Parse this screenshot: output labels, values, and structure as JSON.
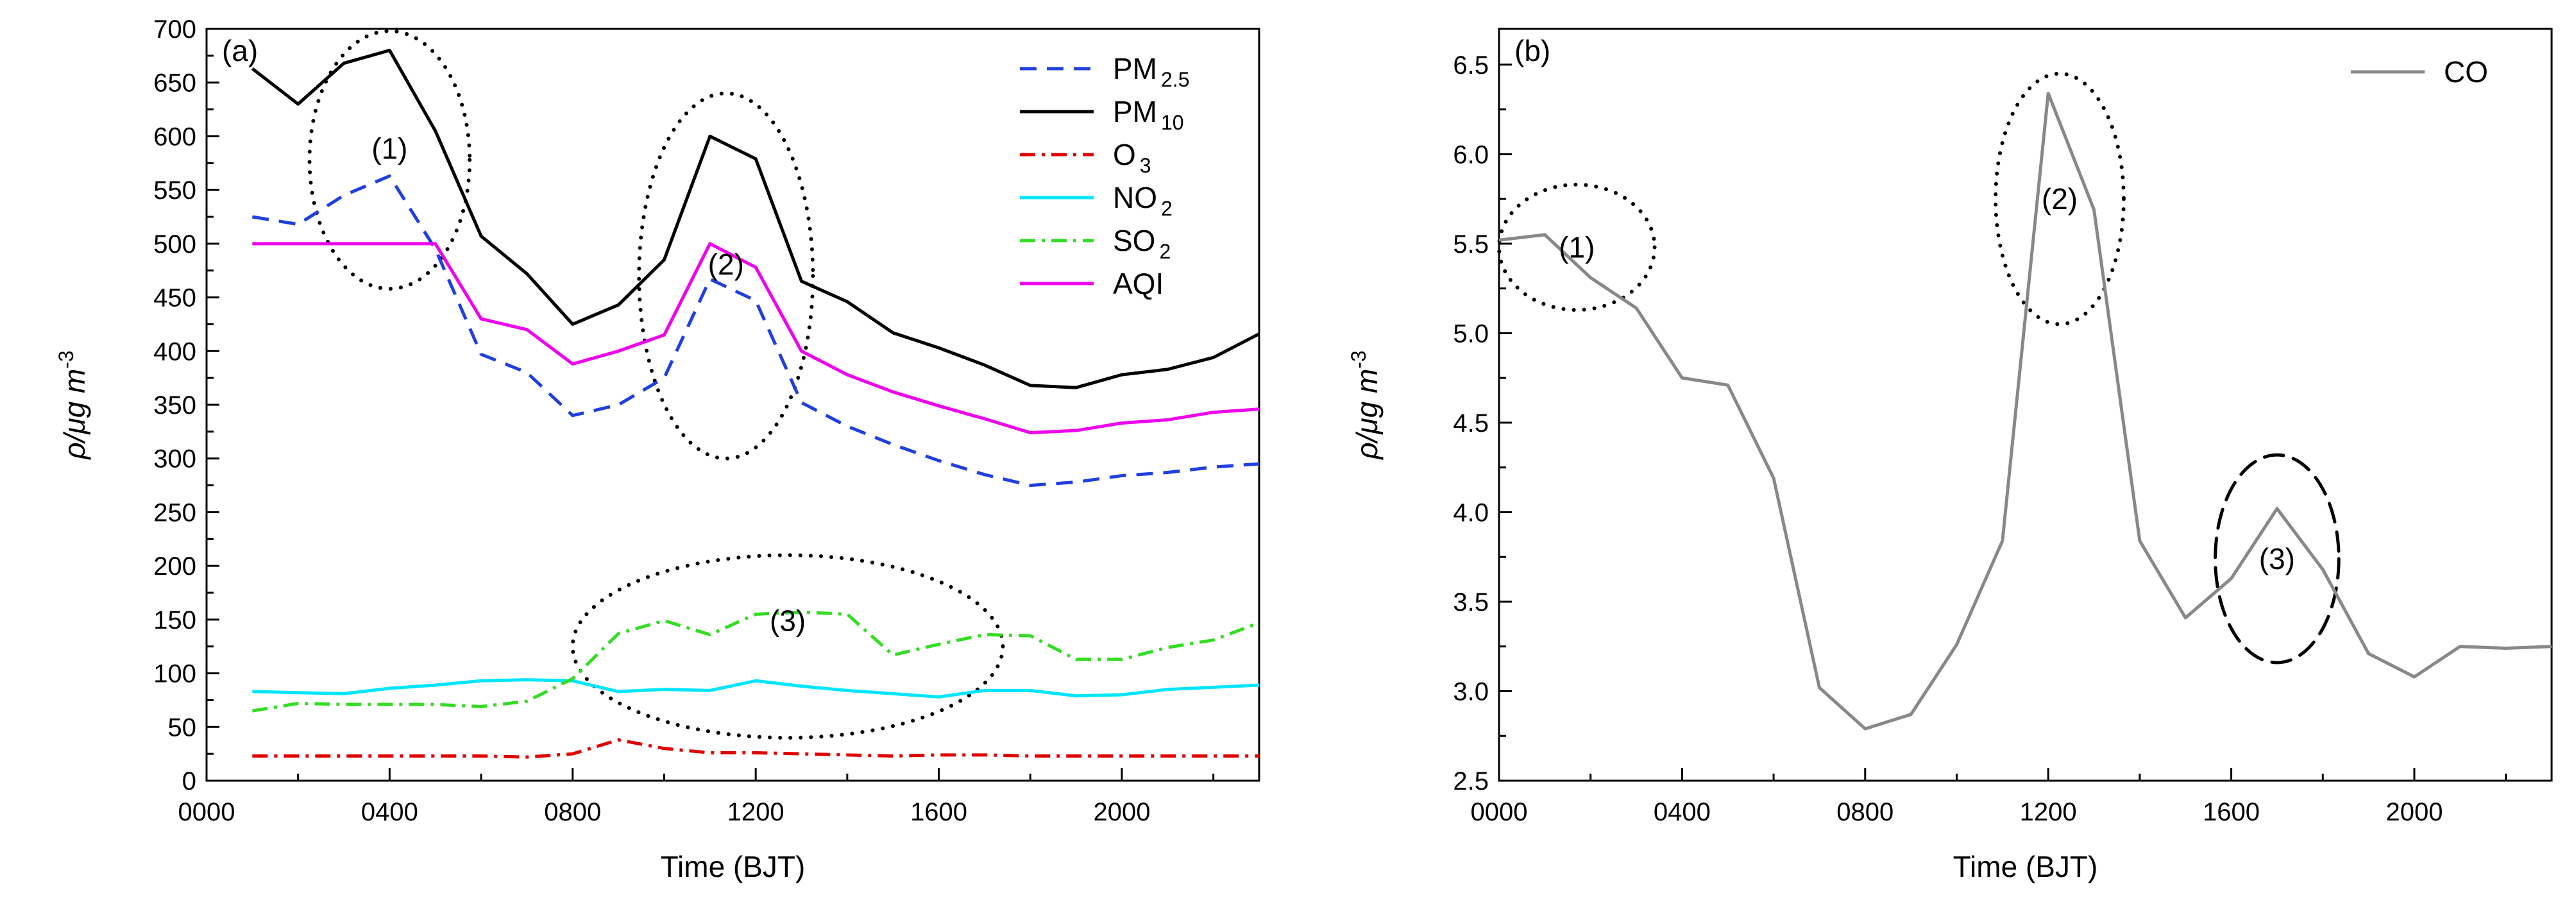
{
  "chart_data": [
    {
      "type": "line",
      "panel_label": "(a)",
      "xlabel": "Time (BJT)",
      "ylabel": "ρ/μg m",
      "ylabel_sup": "-3",
      "xlim": [
        0,
        2300
      ],
      "ylim": [
        0,
        700
      ],
      "x_ticks": [
        0,
        400,
        800,
        1200,
        1600,
        2000
      ],
      "x_tick_labels": [
        "0000",
        "0400",
        "0800",
        "1200",
        "1600",
        "2000"
      ],
      "y_ticks": [
        0,
        50,
        100,
        150,
        200,
        250,
        300,
        350,
        400,
        450,
        500,
        550,
        600,
        650,
        700
      ],
      "y_tick_labels": [
        "0",
        "50",
        "100",
        "150",
        "200",
        "250",
        "300",
        "350",
        "400",
        "450",
        "500",
        "550",
        "600",
        "650",
        "700"
      ],
      "grid": false,
      "legend_position": "top-right",
      "x": [
        100,
        200,
        300,
        400,
        500,
        600,
        700,
        800,
        900,
        1000,
        1100,
        1200,
        1300,
        1400,
        1500,
        1600,
        1700,
        1800,
        1900,
        2000,
        2100,
        2200,
        2300
      ],
      "series": [
        {
          "name": "PM",
          "sub": "2.5",
          "color": "#1f3fe0",
          "dash": "dashed",
          "values": [
            525,
            518,
            545,
            563,
            495,
            397,
            380,
            340,
            350,
            375,
            467,
            447,
            352,
            330,
            313,
            298,
            285,
            275,
            278,
            284,
            287,
            292,
            295
          ]
        },
        {
          "name": "PM",
          "sub": "10",
          "color": "#000000",
          "dash": "solid",
          "values": [
            663,
            630,
            668,
            680,
            605,
            507,
            472,
            425,
            443,
            485,
            600,
            579,
            465,
            446,
            417,
            403,
            387,
            368,
            366,
            378,
            383,
            394,
            416
          ]
        },
        {
          "name": "O",
          "sub": "3",
          "color": "#e00000",
          "dash": "dashdot",
          "values": [
            23,
            23,
            23,
            23,
            23,
            23,
            22,
            25,
            38,
            30,
            26,
            26,
            25,
            24,
            23,
            24,
            24,
            23,
            23,
            23,
            23,
            23,
            23
          ]
        },
        {
          "name": "NO",
          "sub": "2",
          "color": "#00e5ff",
          "dash": "solid",
          "values": [
            83,
            82,
            81,
            86,
            89,
            93,
            94,
            93,
            83,
            85,
            84,
            93,
            88,
            84,
            81,
            78,
            84,
            84,
            79,
            80,
            85,
            87,
            89
          ]
        },
        {
          "name": "SO",
          "sub": "2",
          "color": "#33dd22",
          "dash": "dashdot",
          "values": [
            65,
            72,
            71,
            71,
            71,
            69,
            74,
            95,
            137,
            149,
            136,
            155,
            157,
            155,
            117,
            127,
            136,
            135,
            113,
            113,
            124,
            131,
            147
          ]
        },
        {
          "name": "AQI",
          "sub": "",
          "color": "#ee00ee",
          "dash": "solid",
          "values": [
            500,
            500,
            500,
            500,
            500,
            430,
            420,
            388,
            400,
            415,
            500,
            478,
            400,
            378,
            362,
            349,
            337,
            324,
            326,
            333,
            336,
            343,
            346
          ]
        }
      ],
      "annotations": [
        {
          "text": "(1)",
          "cx": 400,
          "cy": 578,
          "rx": 175,
          "ry": 120,
          "style": "dotted"
        },
        {
          "text": "(2)",
          "cx": 1135,
          "cy": 470,
          "rx": 190,
          "ry": 170,
          "style": "dotted"
        },
        {
          "text": "(3)",
          "cx": 1270,
          "cy": 125,
          "rx": 470,
          "ry": 85,
          "style": "dotted"
        }
      ]
    },
    {
      "type": "line",
      "panel_label": "(b)",
      "xlabel": "Time (BJT)",
      "ylabel": "ρ/μg m",
      "ylabel_sup": "-3",
      "xlim": [
        0,
        2300
      ],
      "ylim": [
        2.5,
        6.7
      ],
      "x_ticks": [
        0,
        400,
        800,
        1200,
        1600,
        2000
      ],
      "x_tick_labels": [
        "0000",
        "0400",
        "0800",
        "1200",
        "1600",
        "2000"
      ],
      "y_ticks": [
        2.5,
        3.0,
        3.5,
        4.0,
        4.5,
        5.0,
        5.5,
        6.0,
        6.5
      ],
      "y_tick_labels": [
        "2.5",
        "3.0",
        "3.5",
        "4.0",
        "4.5",
        "5.0",
        "5.5",
        "6.0",
        "6.5"
      ],
      "grid": false,
      "legend_position": "top-right",
      "x": [
        0,
        100,
        200,
        300,
        400,
        500,
        600,
        700,
        800,
        900,
        1000,
        1100,
        1200,
        1300,
        1400,
        1500,
        1600,
        1700,
        1800,
        1900,
        2000,
        2100,
        2200,
        2300
      ],
      "series": [
        {
          "name": "CO",
          "sub": "",
          "color": "#888888",
          "dash": "solid",
          "values": [
            5.52,
            5.55,
            5.31,
            5.14,
            4.75,
            4.71,
            4.19,
            3.02,
            2.79,
            2.87,
            3.26,
            3.84,
            6.34,
            5.69,
            3.84,
            3.41,
            3.63,
            4.02,
            3.68,
            3.21,
            3.08,
            3.25,
            3.24,
            3.25
          ]
        }
      ],
      "annotations": [
        {
          "text": "(1)",
          "cx": 170,
          "cy": 5.48,
          "rx": 170,
          "ry": 0.35,
          "style": "dotted"
        },
        {
          "text": "(2)",
          "cx": 1225,
          "cy": 5.75,
          "rx": 140,
          "ry": 0.7,
          "style": "dotted"
        },
        {
          "text": "(3)",
          "cx": 1700,
          "cy": 3.74,
          "rx": 135,
          "ry": 0.58,
          "style": "dashed"
        }
      ]
    }
  ]
}
